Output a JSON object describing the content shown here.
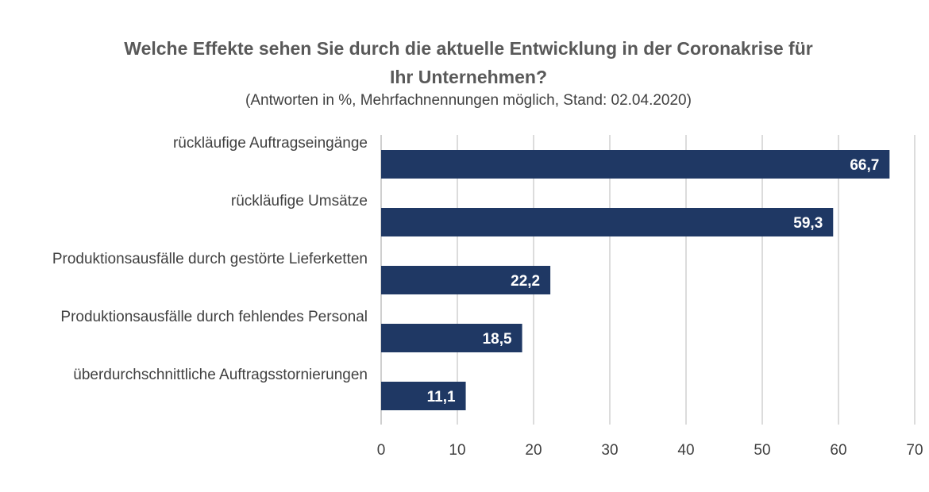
{
  "chart_data": {
    "type": "bar",
    "orientation": "horizontal",
    "title_line1": "Welche Effekte sehen Sie durch die aktuelle Entwicklung in der Coronakrise für",
    "title_line2": "Ihr Unternehmen?",
    "subtitle": "(Antworten in %, Mehrfachnennungen möglich, Stand: 02.04.2020)",
    "categories": [
      "rückläufige Auftragseingänge",
      "rückläufige Umsätze",
      "Produktionsausfälle durch gestörte Lieferketten",
      "Produktionsausfälle durch fehlendes Personal",
      "überdurchschnittliche Auftragsstornierungen"
    ],
    "values": [
      66.7,
      59.3,
      22.2,
      18.5,
      11.1
    ],
    "data_labels": [
      "66,7",
      "59,3",
      "22,2",
      "18,5",
      "11,1"
    ],
    "xlim": [
      0,
      70
    ],
    "x_ticks": [
      0,
      10,
      20,
      30,
      40,
      50,
      60,
      70
    ],
    "grid": true,
    "legend": "none",
    "bar_color": "#1f3864",
    "grid_color": "#d0d0d0"
  }
}
